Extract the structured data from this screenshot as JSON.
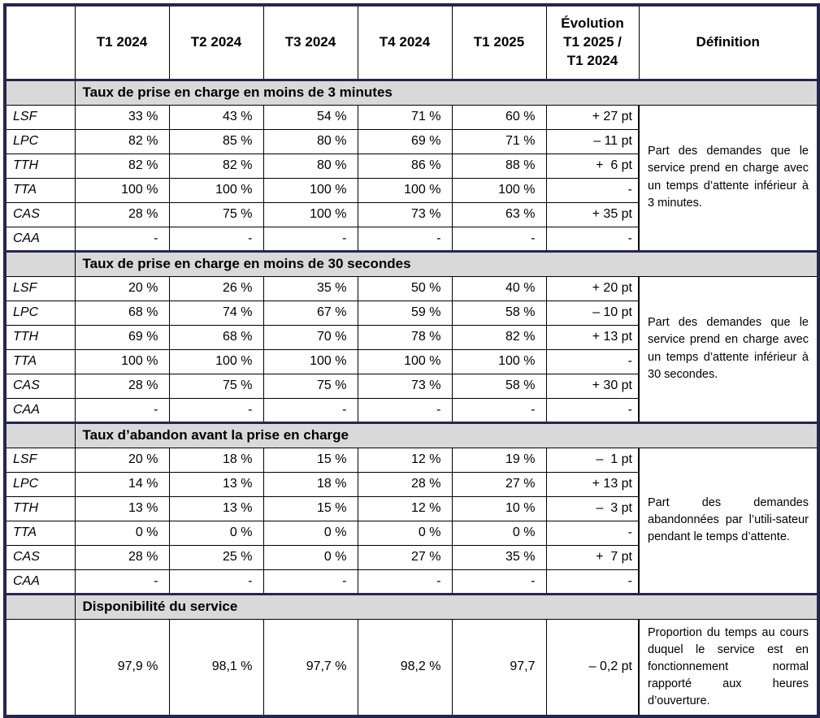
{
  "table": {
    "columns": [
      "T1 2024",
      "T2 2024",
      "T3 2024",
      "T4 2024",
      "T1 2025"
    ],
    "evolution_header": "Évolution\nT1 2025 /\nT1 2024",
    "definition_header": "Définition",
    "sections": [
      {
        "title": "Taux de prise en charge en moins de 3 minutes",
        "definition": "Part des demandes que le service prend en charge avec un temps d’attente inférieur à 3 minutes.",
        "rows": [
          {
            "label": "LSF",
            "values": [
              "33 %",
              "43 %",
              "54 %",
              "71 %",
              "60 %"
            ],
            "evolution": "+ 27 pt"
          },
          {
            "label": "LPC",
            "values": [
              "82 %",
              "85 %",
              "80 %",
              "69 %",
              "71 %"
            ],
            "evolution": "– 11 pt"
          },
          {
            "label": "TTH",
            "values": [
              "82 %",
              "82 %",
              "80 %",
              "86 %",
              "88 %"
            ],
            "evolution": "+  6 pt"
          },
          {
            "label": "TTA",
            "values": [
              "100 %",
              "100 %",
              "100 %",
              "100 %",
              "100 %"
            ],
            "evolution": "-"
          },
          {
            "label": "CAS",
            "values": [
              "28 %",
              "75 %",
              "100 %",
              "73 %",
              "63 %"
            ],
            "evolution": "+ 35 pt"
          },
          {
            "label": "CAA",
            "values": [
              "-",
              "-",
              "-",
              "-",
              "-"
            ],
            "evolution": "-"
          }
        ]
      },
      {
        "title": "Taux de prise en charge en moins de 30 secondes",
        "definition": "Part des demandes que le service prend en charge avec un temps d’attente inférieur à 30 secondes.",
        "rows": [
          {
            "label": "LSF",
            "values": [
              "20 %",
              "26 %",
              "35 %",
              "50 %",
              "40 %"
            ],
            "evolution": "+ 20 pt"
          },
          {
            "label": "LPC",
            "values": [
              "68 %",
              "74 %",
              "67 %",
              "59 %",
              "58 %"
            ],
            "evolution": "– 10 pt"
          },
          {
            "label": "TTH",
            "values": [
              "69 %",
              "68 %",
              "70 %",
              "78 %",
              "82 %"
            ],
            "evolution": "+ 13 pt"
          },
          {
            "label": "TTA",
            "values": [
              "100 %",
              "100 %",
              "100 %",
              "100 %",
              "100 %"
            ],
            "evolution": "-"
          },
          {
            "label": "CAS",
            "values": [
              "28 %",
              "75 %",
              "75 %",
              "73 %",
              "58 %"
            ],
            "evolution": "+ 30 pt"
          },
          {
            "label": "CAA",
            "values": [
              "-",
              "-",
              "-",
              "-",
              "-"
            ],
            "evolution": "-"
          }
        ]
      },
      {
        "title": "Taux d’abandon avant la prise en charge",
        "definition": "Part des demandes abandonnées par l’utili-sateur pendant le temps d’attente.",
        "rows": [
          {
            "label": "LSF",
            "values": [
              "20 %",
              "18 %",
              "15 %",
              "12 %",
              "19 %"
            ],
            "evolution": "–  1 pt"
          },
          {
            "label": "LPC",
            "values": [
              "14 %",
              "13 %",
              "18 %",
              "28 %",
              "27 %"
            ],
            "evolution": "+ 13 pt"
          },
          {
            "label": "TTH",
            "values": [
              "13 %",
              "13 %",
              "15 %",
              "12 %",
              "10 %"
            ],
            "evolution": "–  3 pt"
          },
          {
            "label": "TTA",
            "values": [
              "0 %",
              "0 %",
              "0 %",
              "0 %",
              "0 %"
            ],
            "evolution": "-"
          },
          {
            "label": "CAS",
            "values": [
              "28 %",
              "25 %",
              "0 %",
              "27 %",
              "35 %"
            ],
            "evolution": "+  7 pt"
          },
          {
            "label": "CAA",
            "values": [
              "-",
              "-",
              "-",
              "-",
              "-"
            ],
            "evolution": "-"
          }
        ]
      },
      {
        "title": "Disponibilité du service",
        "definition": "Proportion du temps au cours duquel le service est en fonctionnement normal rapporté aux heures d’ouverture.",
        "rows": [
          {
            "label": "",
            "values": [
              "97,9 %",
              "98,1 %",
              "97,7 %",
              "98,2 %",
              "97,7"
            ],
            "evolution": "– 0,2 pt"
          }
        ]
      }
    ]
  },
  "colors": {
    "outer_border": "#26264d",
    "section_background": "#d9d9d9",
    "grid_line": "#000000",
    "text": "#000000"
  }
}
